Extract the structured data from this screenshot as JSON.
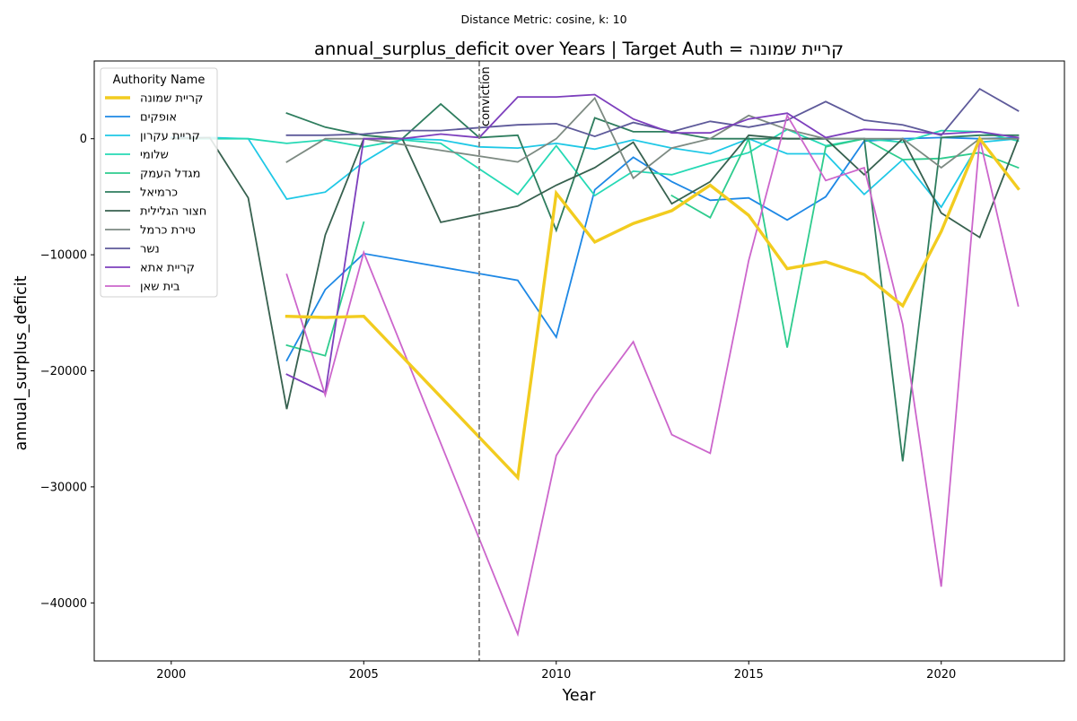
{
  "suptitle": "Distance Metric: cosine, k: 10",
  "chart_data": {
    "type": "line",
    "title": "annual_surplus_deficit over Years | Target Auth = קריית שמונה",
    "xlabel": "Year",
    "ylabel": "annual_surplus_deficit",
    "xlim": [
      1998,
      2023.2
    ],
    "ylim": [
      -45000,
      6700
    ],
    "xticks": [
      2000,
      2005,
      2010,
      2015,
      2020
    ],
    "yticks": [
      -40000,
      -30000,
      -20000,
      -10000,
      0
    ],
    "ytick_labels": [
      "−40000",
      "−30000",
      "−20000",
      "−10000",
      "0"
    ],
    "grid": false,
    "legend_title": "Authority Name",
    "legend_position": "upper-left",
    "vline": {
      "x": 2008,
      "label": "conviction",
      "color": "#808080",
      "style": "dashed"
    },
    "series": [
      {
        "name": "קריית שמונה",
        "color": "#f2cc1f",
        "width": 3.4,
        "target": true,
        "x": [
          2003,
          2004,
          2005,
          2009,
          2010,
          2011,
          2012,
          2013,
          2014,
          2015,
          2016,
          2017,
          2018,
          2019,
          2020,
          2021,
          2022
        ],
        "y": [
          -15300,
          -15400,
          -15300,
          -29200,
          -4700,
          -8900,
          -7300,
          -6200,
          -4000,
          -6600,
          -11200,
          -10600,
          -11700,
          -14400,
          -8000,
          0,
          -4300
        ]
      },
      {
        "name": "אופקים",
        "color": "#1e88e5",
        "width": 1.8,
        "x": [
          2003,
          2004,
          2005,
          2009,
          2010,
          2011,
          2012,
          2013,
          2014,
          2015,
          2016,
          2017,
          2018,
          2019,
          2020,
          2021,
          2022
        ],
        "y": [
          -19100,
          -13000,
          -9900,
          -12200,
          -17100,
          -4400,
          -1600,
          -3700,
          -5300,
          -5100,
          -7000,
          -5000,
          -200,
          0,
          100,
          0,
          100
        ]
      },
      {
        "name": "קריית עקרון",
        "color": "#1fc8e6",
        "width": 1.8,
        "x": [
          2000,
          2001,
          2002,
          2003,
          2004,
          2005,
          2006,
          2007,
          2008,
          2009,
          2010,
          2011,
          2012,
          2013,
          2014,
          2015,
          2016,
          2017,
          2018,
          2019,
          2020,
          2021,
          2022
        ],
        "y": [
          100,
          100,
          0,
          -5200,
          -4600,
          -2000,
          0,
          -100,
          -700,
          -800,
          -400,
          -900,
          -100,
          -800,
          -1300,
          0,
          -1300,
          -1300,
          -4800,
          -1800,
          -5900,
          -300,
          0
        ]
      },
      {
        "name": "שלומי",
        "color": "#26d9b5",
        "width": 1.8,
        "x": [
          2000,
          2001,
          2002,
          2003,
          2004,
          2005,
          2006,
          2007,
          2009,
          2010,
          2011,
          2012,
          2013,
          2014,
          2015,
          2016,
          2017,
          2018,
          2019,
          2020,
          2021,
          2022
        ],
        "y": [
          0,
          0,
          0,
          -400,
          -100,
          -700,
          -100,
          -400,
          -4800,
          -600,
          -4900,
          -2800,
          -3100,
          -2100,
          -1200,
          800,
          -600,
          0,
          -300,
          700,
          600,
          -200
        ]
      },
      {
        "name": "מגדל העמק",
        "color": "#2ecc8e",
        "width": 1.8,
        "x": [
          2003,
          2004,
          2005,
          2009,
          2010,
          2011,
          2012,
          2013,
          2014,
          2015,
          2016,
          2017,
          2018,
          2019,
          2020,
          2021,
          2022
        ],
        "y": [
          -17800,
          -18700,
          -7200,
          null,
          null,
          null,
          null,
          -4900,
          -6800,
          0,
          -18000,
          -700,
          0,
          -1800,
          -1700,
          -1200,
          -2500
        ]
      },
      {
        "name": "כרמיאל",
        "color": "#2e7d5e",
        "width": 1.8,
        "x": [
          2003,
          2004,
          2005,
          2006,
          2007,
          2008,
          2009,
          2010,
          2011,
          2012,
          2013,
          2014,
          2015,
          2016,
          2017,
          2018,
          2019,
          2020,
          2021,
          2022
        ],
        "y": [
          2200,
          1000,
          300,
          0,
          3000,
          100,
          300,
          -7900,
          1800,
          600,
          600,
          0,
          0,
          0,
          0,
          0,
          -27800,
          100,
          300,
          300
        ]
      },
      {
        "name": "חצור הגלילית",
        "color": "#37614f",
        "width": 1.8,
        "x": [
          2000,
          2001,
          2002,
          2003,
          2004,
          2005,
          2006,
          2007,
          2009,
          2010,
          2011,
          2012,
          2013,
          2014,
          2015,
          2016,
          2017,
          2018,
          2019,
          2020,
          2021,
          2022
        ],
        "y": [
          0,
          100,
          -5100,
          -23300,
          -8300,
          0,
          0,
          -7200,
          -5800,
          -4000,
          -2500,
          -300,
          -5600,
          -3700,
          300,
          0,
          0,
          -3100,
          0,
          -6400,
          -8500,
          0
        ]
      },
      {
        "name": "טירת כרמל",
        "color": "#7d8a82",
        "width": 1.8,
        "x": [
          2003,
          2004,
          2005,
          2009,
          2010,
          2011,
          2012,
          2013,
          2014,
          2015,
          2016,
          2017,
          2018,
          2019,
          2020,
          2021,
          2022
        ],
        "y": [
          -2000,
          0,
          0,
          -2000,
          0,
          3500,
          -3400,
          -800,
          0,
          2000,
          800,
          0,
          0,
          0,
          -2500,
          0,
          0
        ]
      },
      {
        "name": "נשר",
        "color": "#5e5a9a",
        "width": 1.8,
        "x": [
          2003,
          2004,
          2005,
          2006,
          2007,
          2009,
          2010,
          2011,
          2012,
          2013,
          2014,
          2015,
          2016,
          2017,
          2018,
          2019,
          2020,
          2021,
          2022
        ],
        "y": [
          300,
          300,
          400,
          700,
          700,
          1200,
          1300,
          200,
          1400,
          600,
          1500,
          1000,
          1600,
          3200,
          1600,
          1200,
          300,
          4300,
          2400
        ]
      },
      {
        "name": "קריית אתא",
        "color": "#7d3fbd",
        "width": 1.8,
        "x": [
          2003,
          2004,
          2005,
          2006,
          2007,
          2008,
          2009,
          2010,
          2011,
          2012,
          2013,
          2014,
          2015,
          2016,
          2017,
          2018,
          2019,
          2020,
          2021,
          2022
        ],
        "y": [
          -20300,
          -21900,
          0,
          0,
          400,
          100,
          3600,
          3600,
          3800,
          1700,
          500,
          500,
          1700,
          2200,
          100,
          800,
          700,
          400,
          600,
          100
        ]
      },
      {
        "name": "בית שאן",
        "color": "#cc66cc",
        "width": 1.8,
        "x": [
          2003,
          2004,
          2005,
          2009,
          2010,
          2011,
          2012,
          2013,
          2014,
          2015,
          2016,
          2017,
          2018,
          2019,
          2020,
          2021,
          2022
        ],
        "y": [
          -11700,
          -22100,
          -9800,
          -42700,
          -27300,
          -22000,
          -17500,
          -25500,
          -27100,
          -10500,
          2000,
          -3600,
          -2500,
          -16000,
          -38600,
          0,
          -14400
        ]
      }
    ]
  }
}
